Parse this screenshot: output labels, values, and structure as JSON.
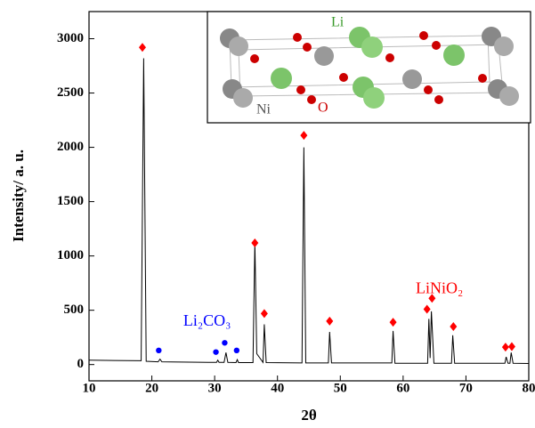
{
  "chart_data": {
    "type": "line",
    "xlabel": "2θ",
    "ylabel": "Intensity/ a. u.",
    "xlim": [
      10,
      80
    ],
    "xticks": [
      10,
      20,
      30,
      40,
      50,
      60,
      70,
      80
    ],
    "ylim": [
      -150,
      3250
    ],
    "yticks": [
      0,
      500,
      1000,
      1500,
      2000,
      2500,
      3000
    ],
    "series": [
      {
        "color": "#000000",
        "x": [
          10,
          18.3,
          18.7,
          19.1,
          21,
          21.3,
          21.6,
          29,
          30.3,
          30.5,
          30.7,
          31.5,
          31.8,
          32.1,
          33.4,
          33.6,
          33.8,
          36.1,
          36.4,
          36.7,
          37.7,
          37.9,
          38.2,
          43.9,
          44.2,
          44.5,
          48.1,
          48.3,
          48.6,
          58.2,
          58.4,
          58.7,
          63.9,
          64.1,
          64.3,
          64.5,
          64.9,
          67.7,
          67.9,
          68.2,
          76.2,
          76.4,
          76.7,
          77.0,
          77.2,
          77.5,
          80
        ],
        "values": [
          40,
          35,
          2820,
          30,
          25,
          50,
          25,
          20,
          20,
          40,
          20,
          20,
          110,
          20,
          18,
          45,
          18,
          18,
          1130,
          100,
          20,
          370,
          18,
          15,
          2000,
          15,
          15,
          300,
          15,
          15,
          310,
          12,
          12,
          420,
          60,
          490,
          12,
          12,
          270,
          12,
          12,
          70,
          12,
          12,
          110,
          12,
          10
        ]
      },
      {
        "color": "#ff0000",
        "marker": "diamond",
        "x": [
          18.5,
          36.4,
          37.9,
          44.2,
          48.3,
          58.4,
          63.8,
          64.6,
          68.0,
          76.3,
          77.3
        ],
        "values": [
          2920,
          1120,
          470,
          2110,
          400,
          390,
          510,
          610,
          350,
          160,
          165
        ]
      },
      {
        "color": "#0000ff",
        "marker": "circle",
        "x": [
          21.1,
          30.2,
          31.6,
          33.5
        ],
        "values": [
          130,
          115,
          200,
          130
        ]
      }
    ],
    "annotations": [
      {
        "text": "LiNiO₂",
        "x": 62,
        "y": 690,
        "color": "#ff0000"
      },
      {
        "text": "Li₂CO₃",
        "x": 25,
        "y": 390,
        "color": "#0000ff"
      }
    ],
    "inset": {
      "labels": [
        "Li",
        "O",
        "Ni"
      ]
    }
  }
}
